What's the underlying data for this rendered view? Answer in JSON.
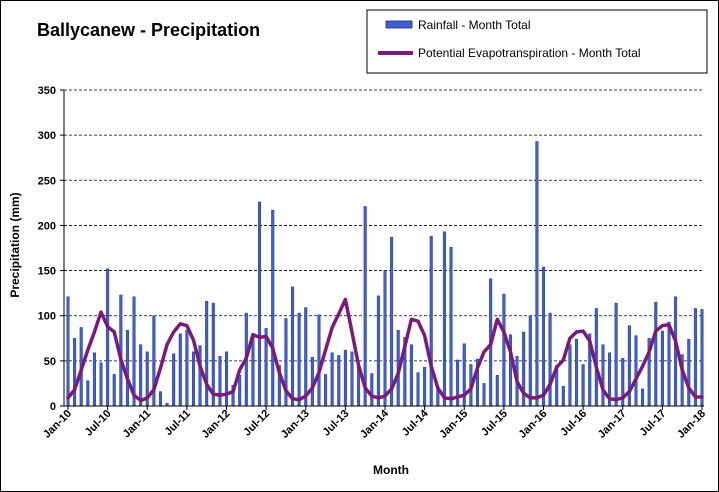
{
  "colors": {
    "rainfall_bar": "#3f5fd6",
    "rainfall_bar_edge": "#1a2a70",
    "pet_line": "#7b1a7b",
    "background": "#ffffff",
    "grid": "#000000"
  },
  "chart_data": {
    "type": "bar",
    "title": "Ballycanew - Precipitation",
    "xlabel": "Month",
    "ylabel": "Precipitation (mm)",
    "ylim": [
      0,
      350
    ],
    "yticks": [
      0,
      50,
      100,
      150,
      200,
      250,
      300,
      350
    ],
    "grid": "horizontal dashed",
    "legend_position": "top-right",
    "xtick_labels": [
      "Jan-10",
      "Jul-10",
      "Jan-11",
      "Jul-11",
      "Jan-12",
      "Jul-12",
      "Jan-13",
      "Jul-13",
      "Jan-14",
      "Jul-14",
      "Jan-15",
      "Jul-15",
      "Jan-16",
      "Jul-16",
      "Jan-17",
      "Jul-17",
      "Jan-18"
    ],
    "categories": [
      "Jan-10",
      "Feb-10",
      "Mar-10",
      "Apr-10",
      "May-10",
      "Jun-10",
      "Jul-10",
      "Aug-10",
      "Sep-10",
      "Oct-10",
      "Nov-10",
      "Dec-10",
      "Jan-11",
      "Feb-11",
      "Mar-11",
      "Apr-11",
      "May-11",
      "Jun-11",
      "Jul-11",
      "Aug-11",
      "Sep-11",
      "Oct-11",
      "Nov-11",
      "Dec-11",
      "Jan-12",
      "Feb-12",
      "Mar-12",
      "Apr-12",
      "May-12",
      "Jun-12",
      "Jul-12",
      "Aug-12",
      "Sep-12",
      "Oct-12",
      "Nov-12",
      "Dec-12",
      "Jan-13",
      "Feb-13",
      "Mar-13",
      "Apr-13",
      "May-13",
      "Jun-13",
      "Jul-13",
      "Aug-13",
      "Sep-13",
      "Oct-13",
      "Nov-13",
      "Dec-13",
      "Jan-14",
      "Feb-14",
      "Mar-14",
      "Apr-14",
      "May-14",
      "Jun-14",
      "Jul-14",
      "Aug-14",
      "Sep-14",
      "Oct-14",
      "Nov-14",
      "Dec-14",
      "Jan-15",
      "Feb-15",
      "Mar-15",
      "Apr-15",
      "May-15",
      "Jun-15",
      "Jul-15",
      "Aug-15",
      "Sep-15",
      "Oct-15",
      "Nov-15",
      "Dec-15",
      "Jan-16",
      "Feb-16",
      "Mar-16",
      "Apr-16",
      "May-16",
      "Jun-16",
      "Jul-16",
      "Aug-16",
      "Sep-16",
      "Oct-16",
      "Nov-16",
      "Dec-16",
      "Jan-17",
      "Feb-17",
      "Mar-17",
      "Apr-17",
      "May-17",
      "Jun-17",
      "Jul-17",
      "Aug-17",
      "Sep-17",
      "Oct-17",
      "Nov-17",
      "Dec-17",
      "Jan-18"
    ],
    "series": [
      {
        "name": "Rainfall  - Month Total",
        "type": "bar",
        "values": [
          121,
          75,
          87,
          28,
          59,
          48,
          152,
          35,
          123,
          84,
          121,
          68,
          60,
          100,
          16,
          3,
          58,
          80,
          84,
          60,
          67,
          116,
          114,
          55,
          60,
          23,
          34,
          103,
          80,
          226,
          86,
          217,
          45,
          97,
          132,
          103,
          109,
          54,
          101,
          35,
          59,
          56,
          62,
          60,
          45,
          221,
          36,
          122,
          150,
          187,
          84,
          76,
          68,
          37,
          43,
          188,
          20,
          193,
          176,
          51,
          69,
          46,
          52,
          25,
          141,
          34,
          124,
          79,
          55,
          82,
          100,
          293,
          154,
          103,
          45,
          22,
          68,
          74,
          46,
          80,
          108,
          68,
          59,
          114,
          53,
          89,
          78,
          19,
          75,
          115,
          83,
          93,
          121,
          57,
          74,
          108,
          107
        ]
      },
      {
        "name": "Potential Evapotranspiration  - Month Total",
        "type": "line",
        "values": [
          9,
          18,
          40,
          62,
          82,
          104,
          88,
          82,
          52,
          30,
          12,
          6,
          9,
          18,
          42,
          68,
          82,
          91,
          89,
          73,
          44,
          24,
          13,
          12,
          13,
          16,
          40,
          53,
          79,
          76,
          77,
          64,
          37,
          17,
          8,
          7,
          11,
          20,
          37,
          62,
          87,
          102,
          118,
          82,
          45,
          20,
          11,
          9,
          11,
          19,
          36,
          66,
          96,
          94,
          78,
          44,
          20,
          9,
          8,
          10,
          12,
          19,
          42,
          60,
          68,
          96,
          82,
          60,
          27,
          14,
          9,
          9,
          12,
          24,
          43,
          51,
          75,
          82,
          83,
          72,
          43,
          18,
          8,
          7,
          9,
          16,
          30,
          44,
          60,
          83,
          89,
          90,
          72,
          40,
          20,
          10,
          10
        ]
      }
    ]
  }
}
